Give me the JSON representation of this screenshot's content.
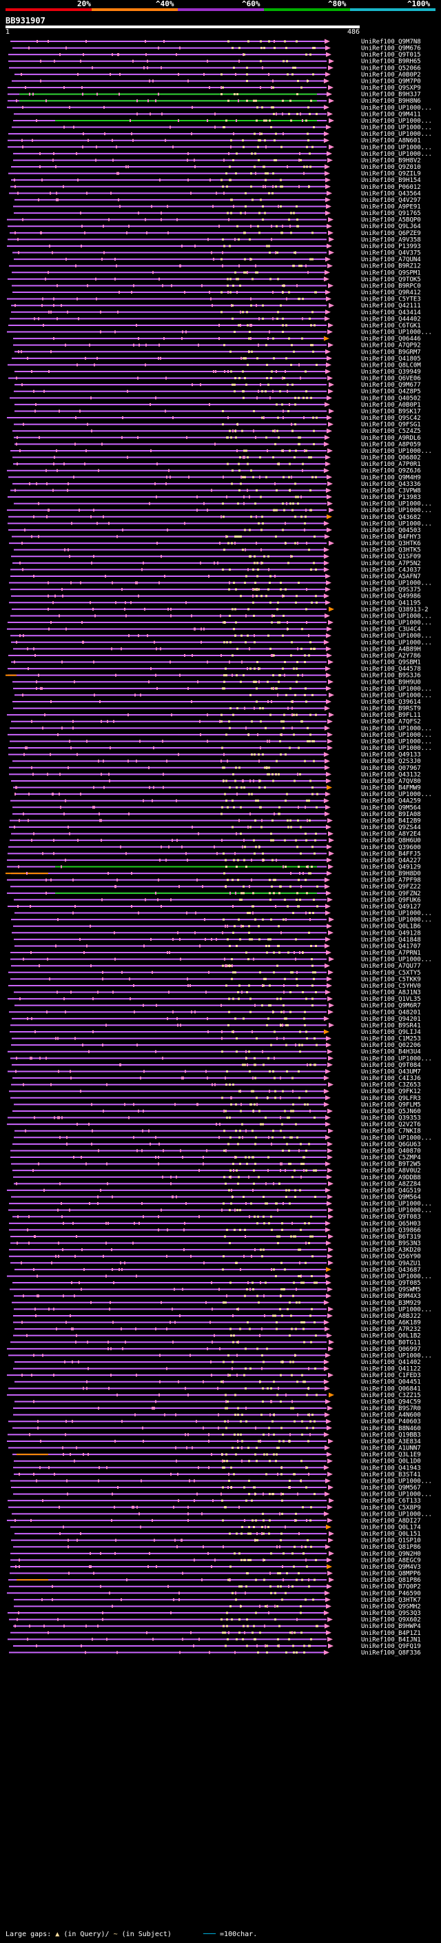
{
  "query_id": "BB931907",
  "ruler": {
    "start_label": "1",
    "end_label": "486"
  },
  "scale": {
    "ticks": [
      "20%",
      "^40%",
      "^60%",
      "^80%",
      "^100%"
    ],
    "colors": [
      "#e8000c",
      "#ff7f0e",
      "#9b30c8",
      "#00b000",
      "#19b6c8"
    ]
  },
  "colors": {
    "line": "#cc66ff",
    "segment_light": "#ffe0a0",
    "segment_pink": "#ff88cc",
    "green": "#22cc22",
    "orange": "#ff8c00"
  },
  "hits": [
    "UniRef100_Q9M7N8",
    "UniRef100_Q9M676",
    "UniRef100_Q9T015",
    "UniRef100_B9RH65",
    "UniRef100_Q52066",
    "UniRef100_A0B0P2",
    "UniRef100_Q9M7P0",
    "UniRef100_Q9SXP9",
    "UniRef100_B9H3J7",
    "UniRef100_B9H8N6",
    "UniRef100_UP1000...",
    "UniRef100_Q9M411",
    "UniRef100_UP1000...",
    "UniRef100_UP1000...",
    "UniRef100_UP1000...",
    "UniRef100_A8N601",
    "UniRef100_UP1000...",
    "UniRef100_UP1000...",
    "UniRef100_B9H8V2",
    "UniRef100_Q9Z010",
    "UniRef100_Q9ZIL9",
    "UniRef100_B9H154",
    "UniRef100_P06012",
    "UniRef100_Q43564",
    "UniRef100_Q4V297",
    "UniRef100_A9PE91",
    "UniRef100_Q91765",
    "UniRef100_A5BQP0",
    "UniRef100_Q9LJ64",
    "UniRef100_Q6PZE9",
    "UniRef100_A9V358",
    "UniRef100_P13993",
    "UniRef100_Q4V375",
    "UniRef100_A7QUN4",
    "UniRef100_B9RZ12",
    "UniRef100_Q9SPM1",
    "UniRef100_Q9TOK5",
    "UniRef100_B9RPC0",
    "UniRef100_Q9R412",
    "UniRef100_C5YTE3",
    "UniRef100_Q42111",
    "UniRef100_Q43414",
    "UniRef100_Q44402",
    "UniRef100_C6TGK1",
    "UniRef100_UP1000...",
    "UniRef100_Q06446",
    "UniRef100_A7QP92",
    "UniRef100_B9GRM7",
    "UniRef100_Q41805",
    "UniRef100_Q8LC0M",
    "UniRef100_Q39949",
    "UniRef100_Q6VE06",
    "UniRef100_Q9M677",
    "UniRef100_Q4Z8P5",
    "UniRef100_Q40502",
    "UniRef100_A0B0P1",
    "UniRef100_B9SK17",
    "UniRef100_Q9SC42",
    "UniRef100_Q9FSG1",
    "UniRef100_C5Z4Z5",
    "UniRef100_A9RDL6",
    "UniRef100_A8P059",
    "UniRef100_UP1000...",
    "UniRef100_Q06802",
    "UniRef100_A7P0R1",
    "UniRef100_Q9Z6J6",
    "UniRef100_Q9M4H9",
    "UniRef100_Q43336",
    "UniRef100_C3VPW8",
    "UniRef100_P13983",
    "UniRef100_UP1000...",
    "UniRef100_UP1000...",
    "UniRef100_Q43682",
    "UniRef100_UP1000...",
    "UniRef100_Q04503",
    "UniRef100_B4FHY3",
    "UniRef100_Q3HTK6",
    "UniRef100_Q3HTK5",
    "UniRef100_Q1SF09",
    "UniRef100_A7P5N2",
    "UniRef100_C4J037",
    "UniRef100_A5AFN7",
    "UniRef100_UP1000...",
    "UniRef100_Q9S375",
    "UniRef100_Q49986",
    "UniRef100_Q41195",
    "UniRef100_Q38913-2",
    "UniRef100_UP1000...",
    "UniRef100_UP1000...",
    "UniRef100_C3U4C4",
    "UniRef100_UP1000...",
    "UniRef100_UP1000...",
    "UniRef100_A4B89H",
    "UniRef100_A2Y786",
    "UniRef100_Q9SBM1",
    "UniRef100_Q44578",
    "UniRef100_B9S3J6",
    "UniRef100_B9H9U0",
    "UniRef100_UP1000...",
    "UniRef100_UP1000...",
    "UniRef100_Q39614",
    "UniRef100_B9RST9",
    "UniRef100_B9FL11",
    "UniRef100_A7QFS2",
    "UniRef100_UP1000...",
    "UniRef100_UP1000...",
    "UniRef100_UP1000...",
    "UniRef100_UP1000...",
    "UniRef100_Q49133",
    "UniRef100_Q2S3J0",
    "UniRef100_Q07967",
    "UniRef100_Q43132",
    "UniRef100_A7QV80",
    "UniRef100_B4FMW9",
    "UniRef100_UP1000...",
    "UniRef100_Q4A259",
    "UniRef100_Q9M564",
    "UniRef100_B9IA08",
    "UniRef100_B4I2B9",
    "UniRef100_Q9ZS44",
    "UniRef100_A8Y2E4",
    "UniRef100_Q8H6U0",
    "UniRef100_Q39600",
    "UniRef100_B4FFJ5",
    "UniRef100_Q4A227",
    "UniRef100_Q49129",
    "UniRef100_B9H8D0",
    "UniRef100_A7PF98",
    "UniRef100_Q9FZ22",
    "UniRef100_Q9FZN2",
    "UniRef100_Q9FUK6",
    "UniRef100_Q49127",
    "UniRef100_UP1000...",
    "UniRef100_UP1000...",
    "UniRef100_Q0L1B6",
    "UniRef100_Q49128",
    "UniRef100_Q41848",
    "UniRef100_Q41707",
    "UniRef100_A7PRN1",
    "UniRef100_UP1000...",
    "UniRef100_A7QU77",
    "UniRef100_C5XTY5",
    "UniRef100_C5TKK9",
    "UniRef100_C5YHV0",
    "UniRef100_A8J1N3",
    "UniRef100_Q1VL35",
    "UniRef100_Q9M6R7",
    "UniRef100_Q48201",
    "UniRef100_Q94201",
    "UniRef100_B9SR41",
    "UniRef100_Q9LIJ4",
    "UniRef100_C1M253",
    "UniRef100_Q02206",
    "UniRef100_B4H3U4",
    "UniRef100_UP1000...",
    "UniRef100_Q9T084",
    "UniRef100_Q43UM7",
    "UniRef100_C4I3J6",
    "UniRef100_C3Z653",
    "UniRef100_Q9FK12",
    "UniRef100_Q9LFR3",
    "UniRef100_Q9FLM5",
    "UniRef100_Q5JN60",
    "UniRef100_Q39353",
    "UniRef100_Q2V2T6",
    "UniRef100_C7NKI8",
    "UniRef100_UP1000...",
    "UniRef100_Q6GU63",
    "UniRef100_Q40870",
    "UniRef100_C5ZMP4",
    "UniRef100_B9T2W5",
    "UniRef100_A8V0U2",
    "UniRef100_A9DDB8",
    "UniRef100_A8ZZ84",
    "UniRef100_Q4G519",
    "UniRef100_Q9M564",
    "UniRef100_UP1000...",
    "UniRef100_UP1000...",
    "UniRef100_Q9T083",
    "UniRef100_Q65H03",
    "UniRef100_Q39866",
    "UniRef100_B6T319",
    "UniRef100_B9S3N3",
    "UniRef100_A3KD20",
    "UniRef100_Q56Y90",
    "UniRef100_Q9AZU1",
    "UniRef100_Q43687",
    "UniRef100_UP1000...",
    "UniRef100_Q9T085",
    "UniRef100_Q9SWM5",
    "UniRef100_B9M4X3",
    "UniRef100_B3M929",
    "UniRef100_UP1000...",
    "UniRef100_A8BJ22",
    "UniRef100_A6K189",
    "UniRef100_A7R232",
    "UniRef100_Q0L1B2",
    "UniRef100_B0TG11",
    "UniRef100_Q06997",
    "UniRef100_UP1000...",
    "UniRef100_Q41402",
    "UniRef100_Q41122",
    "UniRef100_C1FED3",
    "UniRef100_Q04451",
    "UniRef100_Q06841",
    "UniRef100_C3ZZ15",
    "UniRef100_Q94C59",
    "UniRef100_B9S7R0",
    "UniRef100_A4N600",
    "UniRef100_P40603",
    "UniRef100_B8N460",
    "UniRef100_Q19BB3",
    "UniRef100_A3E834",
    "UniRef100_A1UNN7",
    "UniRef100_Q3L1E9",
    "UniRef100_Q0L1D0",
    "UniRef100_Q41943",
    "UniRef100_B3ST41",
    "UniRef100_UP1000...",
    "UniRef100_Q9M567",
    "UniRef100_UP1000...",
    "UniRef100_C6T133",
    "UniRef100_C5X8P9",
    "UniRef100_UP1000...",
    "UniRef100_A8DI27",
    "UniRef100_Q0L174",
    "UniRef100_Q0L151",
    "UniRef100_Q1SP10",
    "UniRef100_Q81P86",
    "UniRef100_Q9N2H0",
    "UniRef100_A8EGC9",
    "UniRef100_Q9M4V3",
    "UniRef100_Q8MPP6",
    "UniRef100_Q81P86",
    "UniRef100_B7Q0P2",
    "UniRef100_P46590",
    "UniRef100_Q3HTK7",
    "UniRef100_Q9SMH2",
    "UniRef100_Q9S3Q3",
    "UniRef100_Q9X602",
    "UniRef100_B9HWP4",
    "UniRef100_B4P1Z1",
    "UniRef100_B4IJN1",
    "UniRef100_Q9FQ19",
    "UniRef100_Q8F336"
  ],
  "footer": {
    "large_gaps_label": "Large gaps:",
    "in_query": "(in Query)/",
    "in_subject": "(in Subject)",
    "scale_key": "=100char."
  }
}
